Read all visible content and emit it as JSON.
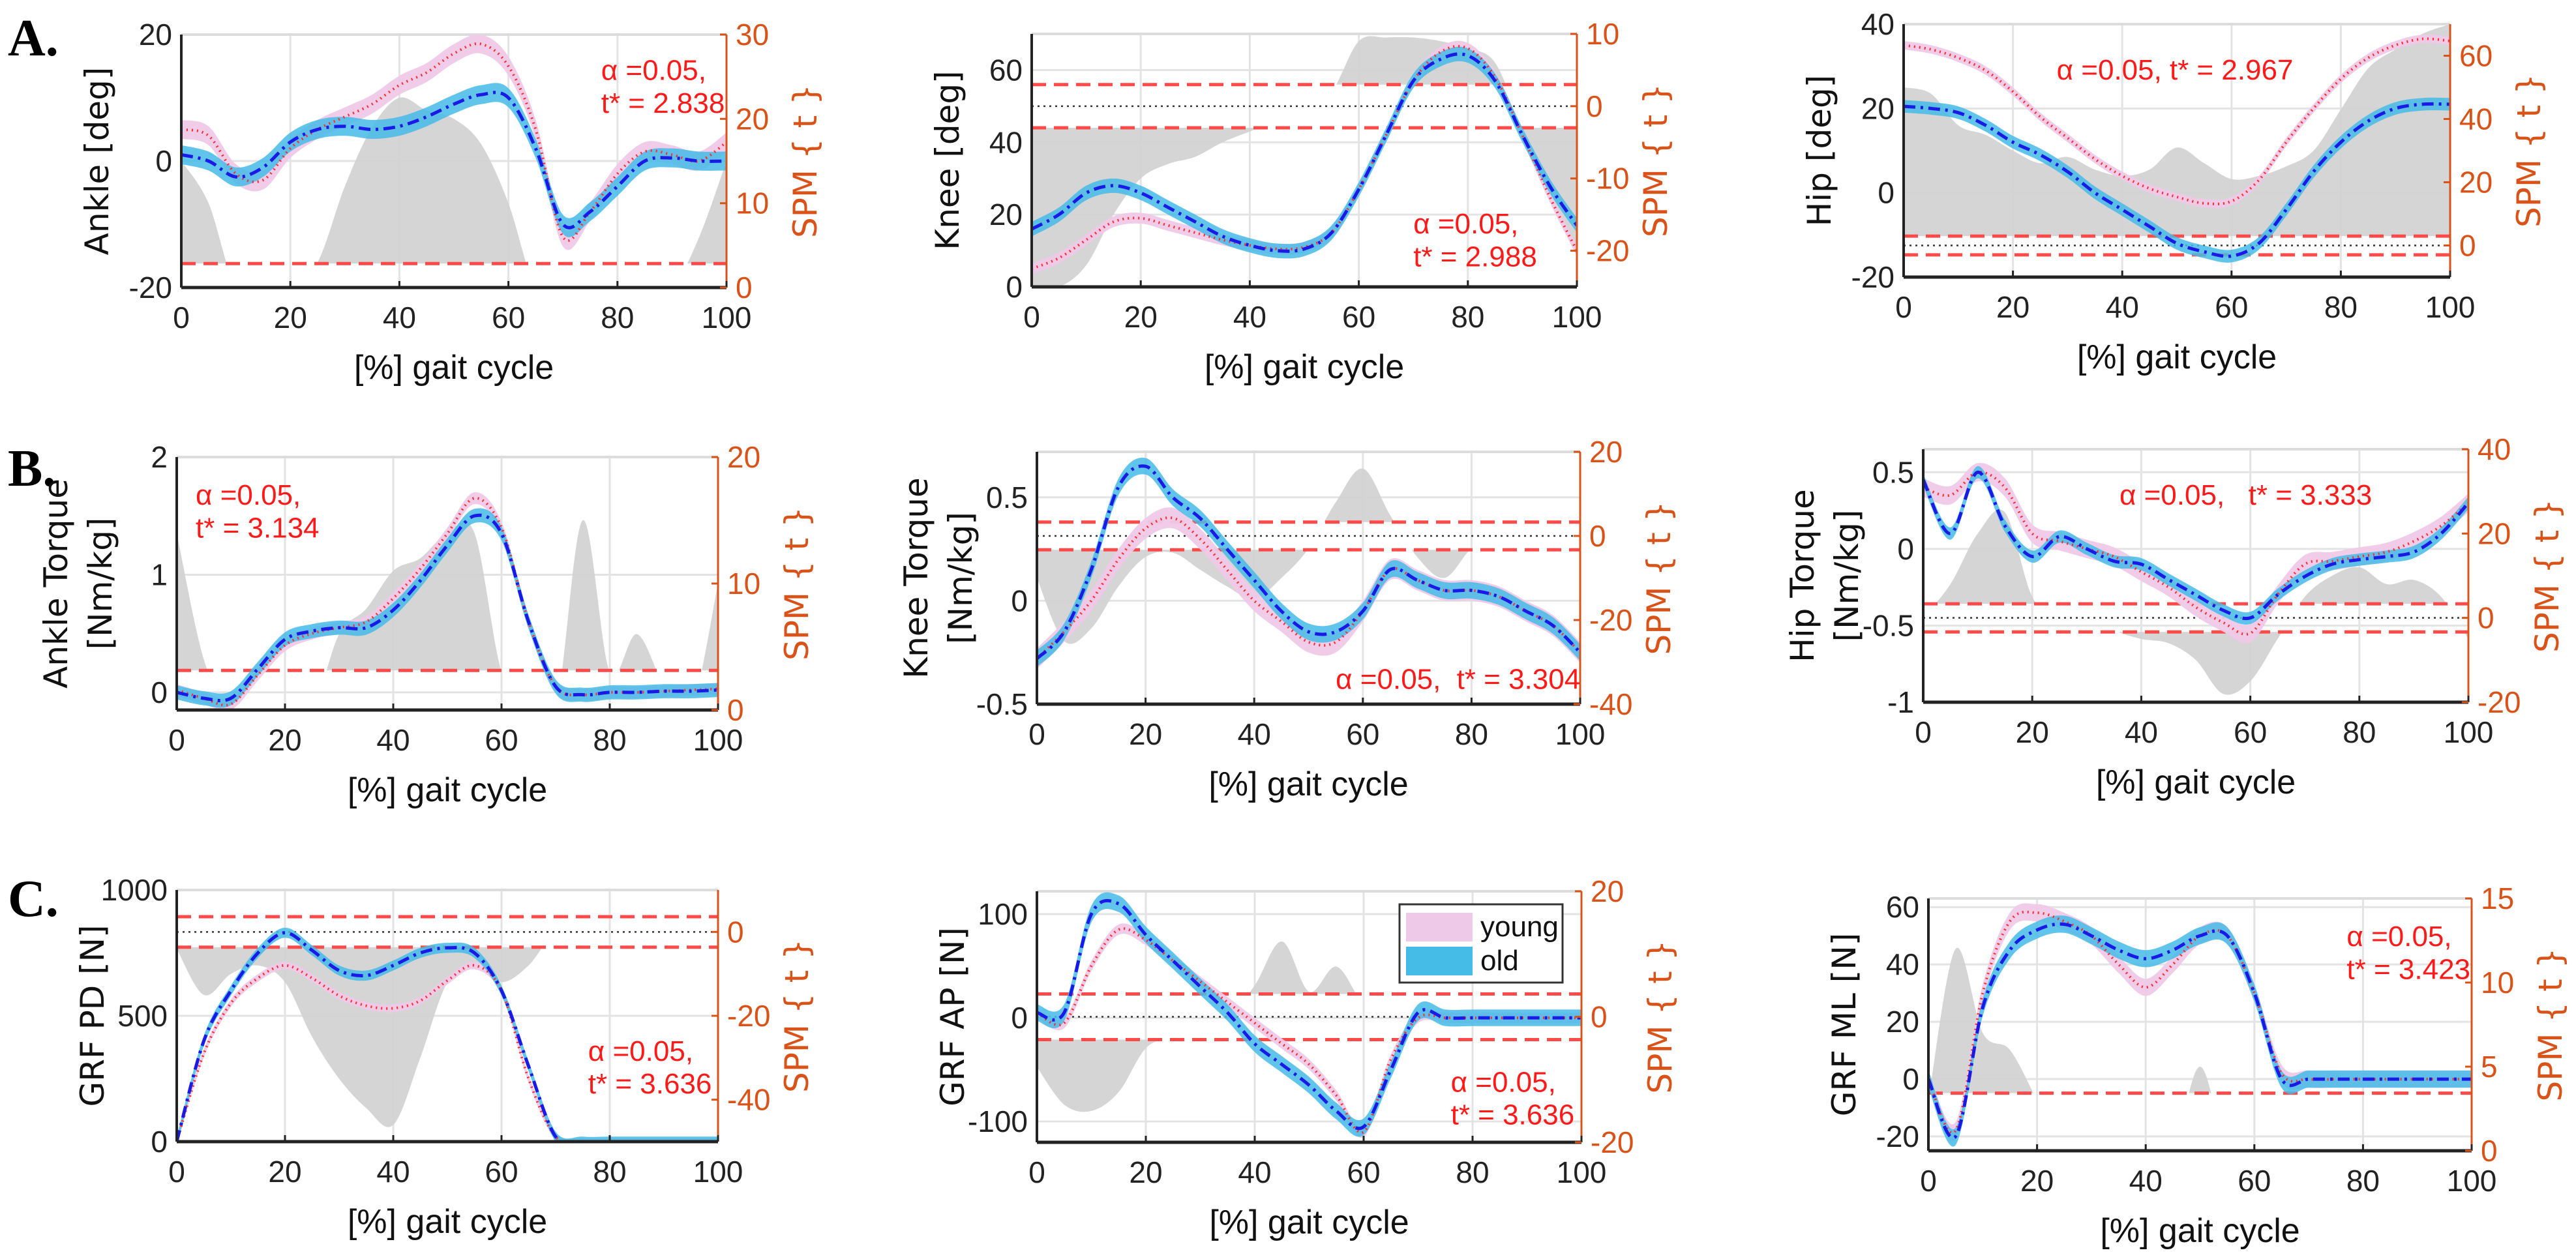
{
  "row_labels": [
    "A.",
    "B.",
    "C."
  ],
  "colors": {
    "young_band": "#efc9e8",
    "old_band": "#45bbe8",
    "young_mean": "#ff2a2a",
    "old_mean": "#1a1ae6",
    "spm_fill": "#d0d0d0",
    "threshold": "#ff4a4a",
    "spm_axis": "#d95319",
    "annotation": "#ff1a1a"
  },
  "legend": [
    {
      "label": "young",
      "color": "#efc9e8"
    },
    {
      "label": "old",
      "color": "#45bbe8"
    }
  ],
  "chart_data": [
    {
      "type": "line",
      "ylabel": [
        "Ankle [deg]"
      ],
      "xlabel": "[%] gait cycle",
      "y2label": "SPM { t }",
      "xlim": [
        0,
        100
      ],
      "ylim": [
        -20,
        20
      ],
      "y2lim": [
        0,
        30
      ],
      "xticks": [
        0,
        20,
        40,
        60,
        80,
        100
      ],
      "yticks": [
        -20,
        0,
        20
      ],
      "y2ticks": [
        0,
        10,
        20,
        30
      ],
      "alpha": "α =0.05,",
      "tstar": "t* = 2.838",
      "threshold": 2.838,
      "x": [
        0,
        5,
        10,
        15,
        20,
        25,
        30,
        35,
        40,
        45,
        50,
        55,
        60,
        65,
        70,
        75,
        80,
        85,
        90,
        95,
        100
      ],
      "series": [
        {
          "name": "young",
          "sd": 1.5,
          "mean": [
            5,
            4,
            -2,
            -3,
            2,
            5,
            7,
            9,
            12,
            14,
            17,
            18.5,
            15,
            5,
            -12,
            -8,
            -2,
            1.5,
            1,
            0,
            3
          ]
        },
        {
          "name": "old",
          "sd": 1.5,
          "mean": [
            1,
            0,
            -2.5,
            -1,
            3,
            5,
            5.5,
            5,
            5.5,
            7,
            9,
            10.5,
            10,
            2,
            -10,
            -8,
            -4,
            0,
            0.5,
            0,
            0
          ]
        }
      ],
      "spm_t": [
        15,
        10,
        0,
        0,
        0,
        3,
        12,
        19,
        22.5,
        21,
        20,
        17,
        10,
        0,
        0,
        0,
        0,
        0,
        0,
        6,
        15
      ]
    },
    {
      "type": "line",
      "ylabel": [
        "Knee [deg]"
      ],
      "xlabel": "[%] gait cycle",
      "y2label": "SPM { t }",
      "xlim": [
        0,
        100
      ],
      "ylim": [
        0,
        70
      ],
      "y2lim": [
        -25,
        10
      ],
      "xticks": [
        0,
        20,
        40,
        60,
        80,
        100
      ],
      "yticks": [
        0,
        20,
        40,
        60
      ],
      "y2ticks": [
        -20,
        -10,
        0,
        10
      ],
      "alpha": "α =0.05,",
      "tstar": "t* = 2.988",
      "threshold": 2.988,
      "x": [
        0,
        5,
        10,
        15,
        20,
        25,
        30,
        35,
        40,
        45,
        50,
        55,
        60,
        65,
        70,
        75,
        80,
        85,
        90,
        95,
        100
      ],
      "series": [
        {
          "name": "young",
          "sd": 1.5,
          "mean": [
            5,
            8,
            13,
            18,
            19,
            17,
            15,
            13,
            11.5,
            10.5,
            11,
            15,
            27,
            42,
            57,
            65,
            66,
            58,
            42,
            25,
            10
          ]
        },
        {
          "name": "old",
          "sd": 2,
          "mean": [
            16,
            20,
            26,
            28,
            26,
            22,
            18,
            14,
            11.5,
            10,
            10.5,
            15,
            27,
            42,
            57,
            63,
            64,
            57,
            42,
            28,
            17
          ]
        }
      ],
      "spm_t": [
        -25,
        -25,
        -22,
        -15,
        -10,
        -8,
        -7,
        -5,
        -3.5,
        -2,
        0,
        2,
        9,
        9.5,
        9.5,
        9,
        8,
        6,
        -3,
        -12,
        -20
      ]
    },
    {
      "type": "line",
      "ylabel": [
        "Hip [deg]"
      ],
      "xlabel": "[%] gait cycle",
      "y2label": "SPM { t }",
      "xlim": [
        0,
        100
      ],
      "ylim": [
        -20,
        40
      ],
      "y2lim": [
        -10,
        70
      ],
      "xticks": [
        0,
        20,
        40,
        60,
        80,
        100
      ],
      "yticks": [
        -20,
        0,
        20,
        40
      ],
      "y2ticks": [
        0,
        20,
        40,
        60
      ],
      "alpha": "α =0.05,",
      "tstar": "t* = 2.967",
      "threshold": 2.967,
      "x": [
        0,
        5,
        10,
        15,
        20,
        25,
        30,
        35,
        40,
        45,
        50,
        55,
        60,
        65,
        70,
        75,
        80,
        85,
        90,
        95,
        100
      ],
      "series": [
        {
          "name": "young",
          "sd": 1,
          "mean": [
            35,
            34,
            32,
            29,
            24,
            18,
            13,
            8,
            4,
            1,
            -1,
            -2.5,
            -2,
            3,
            12,
            20,
            27,
            32,
            35,
            36.5,
            36
          ]
        },
        {
          "name": "old",
          "sd": 1.5,
          "mean": [
            20.5,
            20,
            19,
            16,
            12,
            9,
            5,
            0,
            -4,
            -8,
            -12,
            -14,
            -15,
            -12,
            -4,
            5,
            12,
            17,
            20,
            21,
            21
          ]
        }
      ],
      "spm_t": [
        50,
        48,
        38,
        35,
        30,
        26,
        28,
        24,
        22,
        24,
        31,
        26,
        21,
        22,
        25,
        30,
        43,
        56,
        62,
        67,
        70
      ]
    },
    {
      "type": "line",
      "ylabel": [
        "Ankle Torque",
        "[Nm/kg]"
      ],
      "xlabel": "[%] gait cycle",
      "y2label": "SPM { t }",
      "xlim": [
        0,
        100
      ],
      "ylim": [
        -0.15,
        2
      ],
      "y2lim": [
        0,
        20
      ],
      "xticks": [
        0,
        20,
        40,
        60,
        80,
        100
      ],
      "yticks": [
        0,
        1,
        2
      ],
      "y2ticks": [
        0,
        10,
        20
      ],
      "alpha": "α =0.05,",
      "tstar": "t* = 3.134",
      "threshold": 3.134,
      "x": [
        0,
        5,
        10,
        15,
        20,
        25,
        30,
        35,
        40,
        45,
        50,
        55,
        60,
        65,
        70,
        75,
        80,
        85,
        90,
        95,
        100
      ],
      "series": [
        {
          "name": "young",
          "sd": 0.05,
          "mean": [
            0.02,
            -0.05,
            -0.1,
            0.15,
            0.4,
            0.5,
            0.55,
            0.6,
            0.8,
            1.05,
            1.35,
            1.65,
            1.4,
            0.6,
            0.05,
            -0.02,
            0,
            0,
            0.01,
            0.02,
            0.03
          ]
        },
        {
          "name": "old",
          "sd": 0.06,
          "mean": [
            0,
            -0.05,
            -0.05,
            0.2,
            0.45,
            0.52,
            0.55,
            0.55,
            0.7,
            0.95,
            1.25,
            1.5,
            1.35,
            0.6,
            0.05,
            -0.02,
            0,
            0,
            0.01,
            0.01,
            0.02
          ]
        }
      ],
      "spm_t": [
        14,
        4,
        0,
        0,
        0,
        0,
        6,
        8,
        11,
        12,
        14,
        14,
        3,
        0,
        0,
        15,
        3,
        6,
        2,
        0,
        10
      ]
    },
    {
      "type": "line",
      "ylabel": [
        "Knee Torque",
        "[Nm/kg]"
      ],
      "xlabel": "[%] gait cycle",
      "y2label": "SPM { t }",
      "xlim": [
        0,
        100
      ],
      "ylim": [
        -0.5,
        0.72
      ],
      "y2lim": [
        -40,
        20
      ],
      "xticks": [
        0,
        20,
        40,
        60,
        80,
        100
      ],
      "yticks": [
        -0.5,
        0,
        0.5
      ],
      "y2ticks": [
        -40,
        -20,
        0,
        20
      ],
      "alpha": "α =0.05,",
      "tstar": " t* = 3.304",
      "threshold": 3.304,
      "x": [
        0,
        5,
        10,
        15,
        20,
        25,
        30,
        35,
        40,
        45,
        50,
        55,
        60,
        65,
        70,
        75,
        80,
        85,
        90,
        95,
        100
      ],
      "series": [
        {
          "name": "young",
          "sd": 0.05,
          "mean": [
            -0.28,
            -0.15,
            0,
            0.2,
            0.35,
            0.4,
            0.3,
            0.15,
            0,
            -0.1,
            -0.2,
            -0.2,
            -0.05,
            0.15,
            0.1,
            0.05,
            0.05,
            0.02,
            -0.05,
            -0.12,
            -0.25
          ]
        },
        {
          "name": "old",
          "sd": 0.04,
          "mean": [
            -0.28,
            -0.15,
            0.15,
            0.55,
            0.65,
            0.5,
            0.4,
            0.25,
            0.1,
            -0.05,
            -0.15,
            -0.15,
            -0.05,
            0.15,
            0.1,
            0.05,
            0.05,
            0.02,
            -0.05,
            -0.12,
            -0.25
          ]
        }
      ],
      "spm_t": [
        -10,
        -25,
        -22,
        -12,
        -5,
        -4,
        -8,
        -12,
        -15,
        -10,
        -3,
        8,
        16,
        5,
        -5,
        -10,
        -3,
        0,
        0,
        0,
        0
      ]
    },
    {
      "type": "line",
      "ylabel": [
        "Hip Torque",
        "[Nm/kg]"
      ],
      "xlabel": "[%] gait cycle",
      "y2label": "SPM { t }",
      "xlim": [
        0,
        100
      ],
      "ylim": [
        -1,
        0.65
      ],
      "y2lim": [
        -20,
        40
      ],
      "xticks": [
        0,
        20,
        40,
        60,
        80,
        100
      ],
      "yticks": [
        -1,
        -0.5,
        0,
        0.5
      ],
      "y2ticks": [
        -20,
        0,
        20,
        40
      ],
      "alpha": "α =0.05,",
      "tstar": "  t* = 3.333",
      "threshold": 3.333,
      "x": [
        0,
        5,
        10,
        15,
        20,
        25,
        30,
        35,
        40,
        45,
        50,
        55,
        60,
        65,
        70,
        75,
        80,
        85,
        90,
        95,
        100
      ],
      "series": [
        {
          "name": "young",
          "sd": 0.06,
          "mean": [
            0.4,
            0.35,
            0.5,
            0.4,
            0.1,
            0.05,
            0,
            -0.05,
            -0.15,
            -0.25,
            -0.38,
            -0.48,
            -0.55,
            -0.3,
            -0.1,
            -0.08,
            -0.05,
            -0.02,
            0.05,
            0.15,
            0.3
          ]
        },
        {
          "name": "old",
          "sd": 0.04,
          "mean": [
            0.45,
            0.1,
            0.5,
            0.15,
            -0.05,
            0.08,
            0,
            -0.08,
            -0.1,
            -0.2,
            -0.3,
            -0.4,
            -0.45,
            -0.3,
            -0.18,
            -0.1,
            -0.07,
            -0.05,
            -0.02,
            0.1,
            0.3
          ]
        }
      ],
      "spm_t": [
        0,
        8,
        20,
        25,
        5,
        0,
        0,
        -3,
        -5,
        -6,
        -10,
        -18,
        -15,
        -5,
        5,
        10,
        12,
        8,
        9,
        5,
        -5
      ]
    },
    {
      "type": "line",
      "ylabel": [
        "GRF PD [N]"
      ],
      "xlabel": "[%] gait cycle",
      "y2label": "SPM { t }",
      "xlim": [
        0,
        100
      ],
      "ylim": [
        0,
        1000
      ],
      "y2lim": [
        -50,
        10
      ],
      "xticks": [
        0,
        20,
        40,
        60,
        80,
        100
      ],
      "yticks": [
        0,
        500,
        1000
      ],
      "y2ticks": [
        -40,
        -20,
        0
      ],
      "alpha": "α =0.05,",
      "tstar": "t* = 3.636",
      "threshold": 3.636,
      "x": [
        0,
        5,
        10,
        15,
        20,
        25,
        30,
        35,
        40,
        45,
        50,
        55,
        60,
        65,
        70,
        75,
        80,
        85,
        90,
        95,
        100
      ],
      "series": [
        {
          "name": "young",
          "sd": 15,
          "mean": [
            0,
            350,
            550,
            650,
            700,
            650,
            580,
            540,
            530,
            560,
            640,
            700,
            600,
            250,
            20,
            0,
            0,
            0,
            0,
            0,
            0
          ]
        },
        {
          "name": "old",
          "sd": 20,
          "mean": [
            0,
            400,
            600,
            750,
            830,
            760,
            680,
            660,
            700,
            750,
            770,
            750,
            600,
            300,
            20,
            0,
            0,
            0,
            0,
            0,
            0
          ]
        }
      ],
      "spm_t": [
        -4,
        -15,
        -10,
        -8,
        -12,
        -25,
        -35,
        -42,
        -46,
        -30,
        -12,
        -8,
        -12,
        -8,
        0,
        0,
        0,
        0,
        0,
        0,
        0
      ]
    },
    {
      "type": "line",
      "ylabel": [
        "GRF AP [N]"
      ],
      "xlabel": "[%] gait cycle",
      "y2label": "SPM { t }",
      "xlim": [
        0,
        100
      ],
      "ylim": [
        -120,
        122
      ],
      "y2lim": [
        -20,
        20
      ],
      "xticks": [
        0,
        20,
        40,
        60,
        80,
        100
      ],
      "yticks": [
        -100,
        0,
        100
      ],
      "y2ticks": [
        -20,
        0,
        20
      ],
      "alpha": "α =0.05,",
      "tstar": "t* = 3.636",
      "threshold": 3.636,
      "x": [
        0,
        5,
        10,
        15,
        20,
        25,
        30,
        35,
        40,
        45,
        50,
        55,
        60,
        65,
        70,
        75,
        80,
        85,
        90,
        95,
        100
      ],
      "series": [
        {
          "name": "young",
          "sd": 5,
          "mean": [
            5,
            -5,
            50,
            85,
            75,
            55,
            35,
            15,
            -5,
            -25,
            -45,
            -75,
            -110,
            -40,
            0,
            0,
            0,
            0,
            0,
            0,
            0
          ]
        },
        {
          "name": "old",
          "sd": 8,
          "mean": [
            5,
            5,
            100,
            110,
            80,
            55,
            30,
            5,
            -25,
            -45,
            -65,
            -90,
            -105,
            -50,
            5,
            0,
            0,
            0,
            0,
            0,
            0
          ]
        }
      ],
      "spm_t": [
        -8,
        -14,
        -15,
        -12,
        -5,
        -3,
        0,
        0,
        5,
        12,
        4,
        8,
        2,
        0,
        0,
        0,
        0,
        0,
        0,
        0,
        0
      ]
    },
    {
      "type": "line",
      "ylabel": [
        "GRF ML [N]"
      ],
      "xlabel": "[%] gait cycle",
      "y2label": "SPM { t }",
      "xlim": [
        0,
        100
      ],
      "ylim": [
        -25,
        63
      ],
      "y2lim": [
        0,
        15
      ],
      "xticks": [
        0,
        20,
        40,
        60,
        80,
        100
      ],
      "yticks": [
        -20,
        0,
        20,
        40,
        60
      ],
      "y2ticks": [
        0,
        5,
        10,
        15
      ],
      "alpha": "α =0.05,",
      "tstar": "t* = 3.423",
      "threshold": 3.423,
      "x": [
        0,
        5,
        10,
        15,
        20,
        25,
        30,
        35,
        40,
        45,
        50,
        55,
        60,
        65,
        70,
        75,
        80,
        85,
        90,
        95,
        100
      ],
      "series": [
        {
          "name": "young",
          "sd": 3,
          "mean": [
            0,
            -18,
            30,
            55,
            58,
            55,
            50,
            40,
            32,
            40,
            50,
            50,
            30,
            2,
            0,
            0,
            0,
            0,
            0,
            0,
            0
          ]
        },
        {
          "name": "old",
          "sd": 3,
          "mean": [
            0,
            -20,
            25,
            45,
            52,
            54,
            50,
            45,
            42,
            45,
            50,
            50,
            30,
            0,
            0,
            0,
            0,
            0,
            0,
            0,
            0
          ]
        }
      ],
      "spm_t": [
        3,
        12,
        7,
        6,
        3,
        0,
        0,
        0,
        0,
        0,
        5,
        0,
        0,
        0,
        0,
        0,
        0,
        0,
        0,
        0,
        0
      ]
    }
  ]
}
